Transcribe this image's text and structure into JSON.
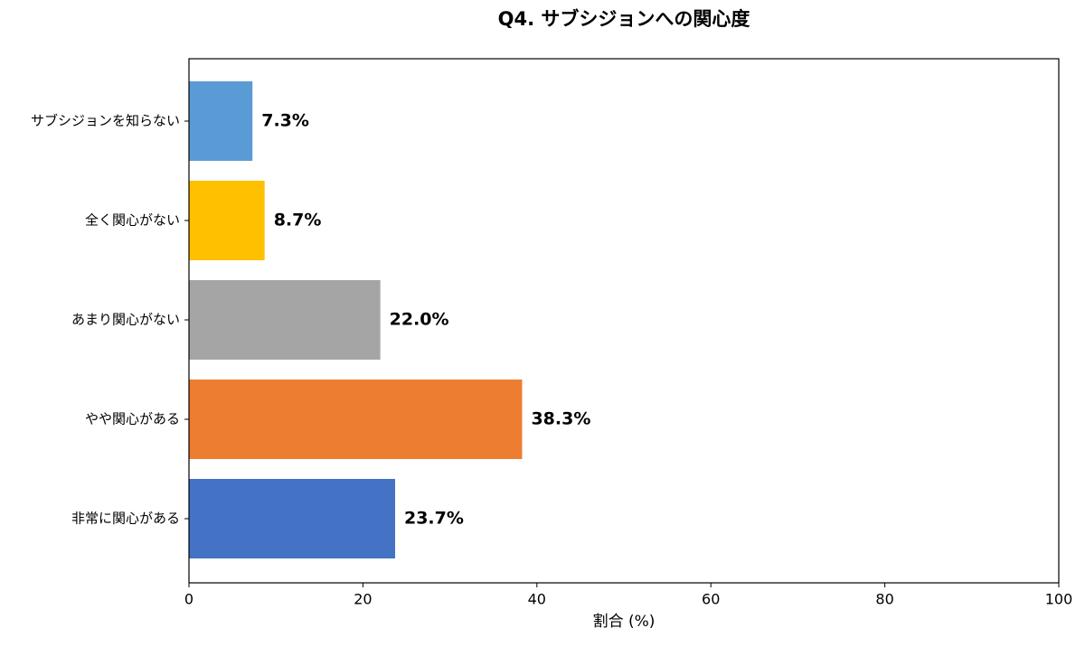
{
  "chart_data": {
    "type": "barh",
    "title": "Q4. サブシジョンへの関心度",
    "categories": [
      "サブシジョンを知らない",
      "全く関心がない",
      "あまり関心がない",
      "やや関心がある",
      "非常に関心がある"
    ],
    "values": [
      7.3,
      8.7,
      22.0,
      38.3,
      23.7
    ],
    "value_labels": [
      "7.3%",
      "8.7%",
      "22.0%",
      "38.3%",
      "23.7%"
    ],
    "colors": [
      "#5b9bd5",
      "#ffc000",
      "#a5a5a5",
      "#ed7d31",
      "#4472c4"
    ],
    "xlabel": "割合 (%)",
    "xlim": [
      0,
      100
    ],
    "xticks": [
      0,
      20,
      40,
      60,
      80,
      100
    ]
  }
}
